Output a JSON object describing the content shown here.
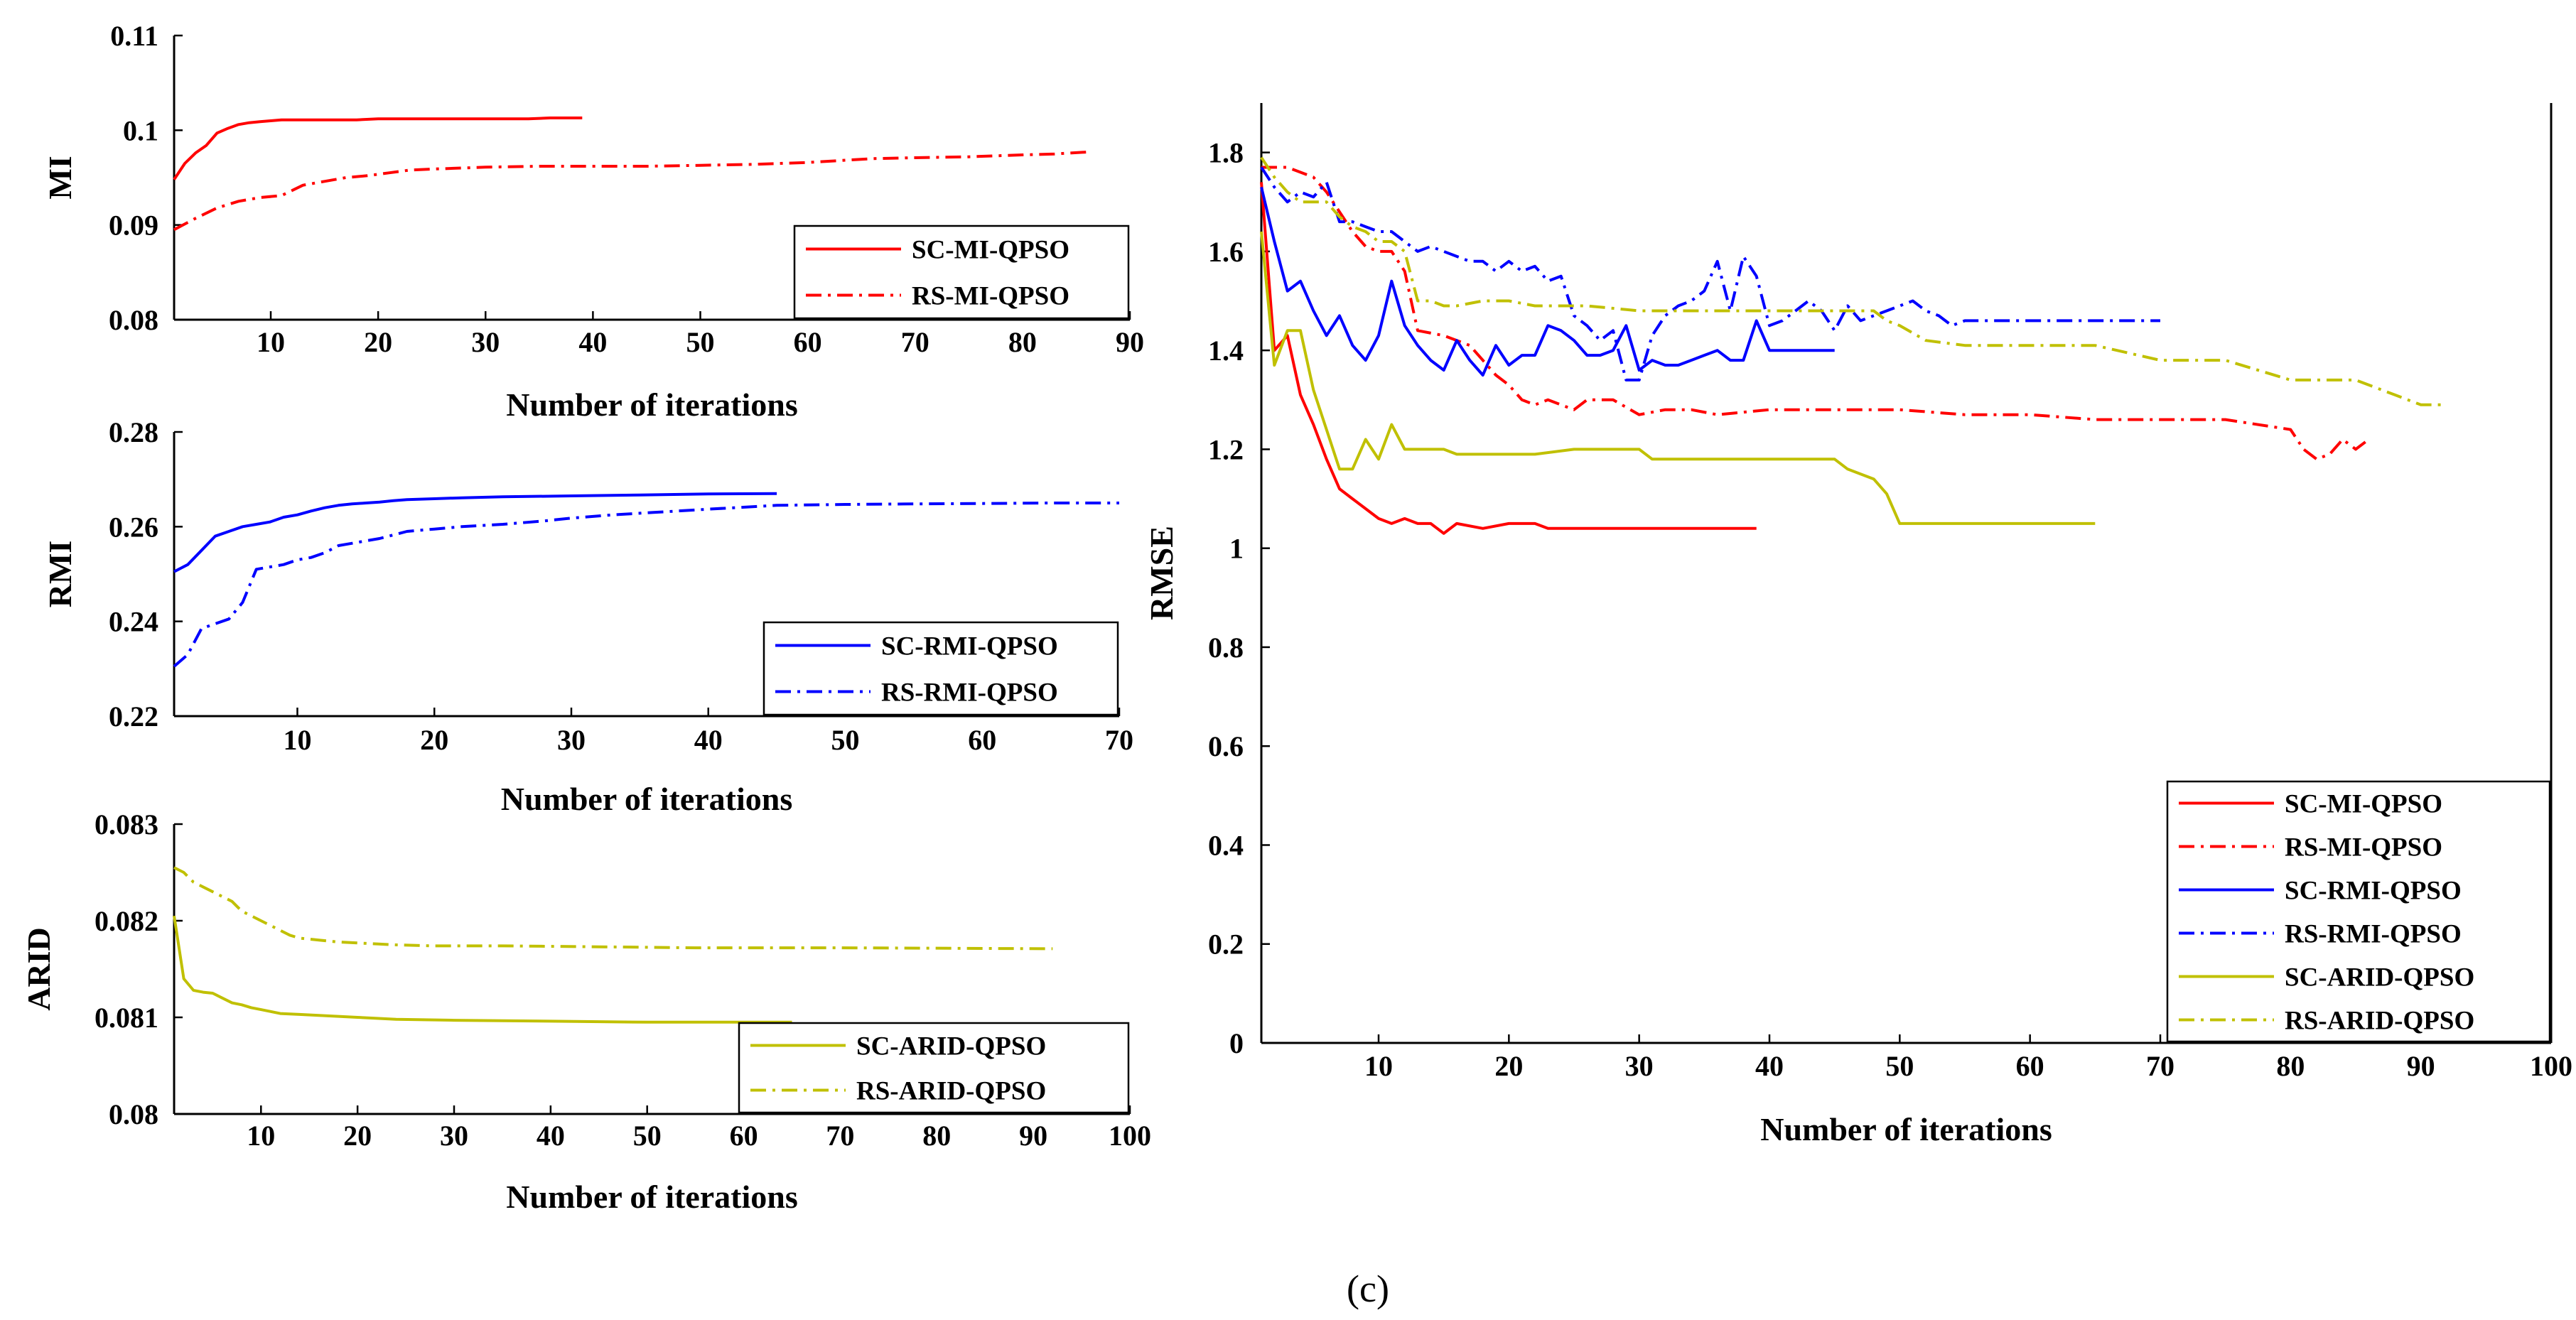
{
  "caption": "(c)",
  "chart_data": [
    {
      "id": "mi",
      "type": "line",
      "xlabel": "Number of iterations",
      "ylabel": "MI",
      "xlim": [
        1,
        90
      ],
      "ylim": [
        0.08,
        0.11
      ],
      "xticks": [
        10,
        20,
        30,
        40,
        50,
        60,
        70,
        80,
        90
      ],
      "xtick_labels": [
        "10",
        "20",
        "30",
        "40",
        "50",
        "60",
        "70",
        "80",
        "90"
      ],
      "yticks": [
        0.08,
        0.09,
        0.1,
        0.11
      ],
      "ytick_labels": [
        "0.08",
        "0.09",
        "0.1",
        "0.11"
      ],
      "legend": "bottom-right",
      "series": [
        {
          "name": "SC-MI-QPSO",
          "color": "#ff0000",
          "style": "solid",
          "x": [
            1,
            2,
            3,
            4,
            5,
            6,
            7,
            8,
            9,
            10,
            11,
            12,
            14,
            16,
            18,
            20,
            22,
            24,
            26,
            28,
            30,
            32,
            34,
            36,
            38,
            39
          ],
          "y": [
            0.0948,
            0.0965,
            0.0976,
            0.0984,
            0.0997,
            0.1002,
            0.1006,
            0.1008,
            0.1009,
            0.101,
            0.1011,
            0.1011,
            0.1011,
            0.1011,
            0.1011,
            0.1012,
            0.1012,
            0.1012,
            0.1012,
            0.1012,
            0.1012,
            0.1012,
            0.1012,
            0.1013,
            0.1013,
            0.1013
          ]
        },
        {
          "name": "RS-MI-QPSO",
          "color": "#ff0000",
          "style": "dashdot",
          "x": [
            1,
            3,
            5,
            7,
            9,
            11,
            13,
            15,
            17,
            19,
            21,
            23,
            25,
            30,
            35,
            40,
            45,
            50,
            55,
            60,
            63,
            66,
            70,
            75,
            80,
            83,
            86
          ],
          "y": [
            0.0895,
            0.0907,
            0.0918,
            0.0925,
            0.0929,
            0.0931,
            0.0942,
            0.0946,
            0.095,
            0.0952,
            0.0955,
            0.0958,
            0.0959,
            0.0961,
            0.0962,
            0.0962,
            0.0962,
            0.0963,
            0.0964,
            0.0966,
            0.0968,
            0.097,
            0.0971,
            0.0972,
            0.0974,
            0.0975,
            0.0977
          ]
        }
      ]
    },
    {
      "id": "rmi",
      "type": "line",
      "xlabel": "Number of iterations",
      "ylabel": "RMI",
      "xlim": [
        1,
        70
      ],
      "ylim": [
        0.22,
        0.28
      ],
      "xticks": [
        10,
        20,
        30,
        40,
        50,
        60,
        70
      ],
      "xtick_labels": [
        "10",
        "20",
        "30",
        "40",
        "50",
        "60",
        "70"
      ],
      "yticks": [
        0.22,
        0.24,
        0.26,
        0.28
      ],
      "ytick_labels": [
        "0.22",
        "0.24",
        "0.26",
        "0.28"
      ],
      "legend": "bottom-right",
      "series": [
        {
          "name": "SC-RMI-QPSO",
          "color": "#0000ff",
          "style": "solid",
          "x": [
            1,
            2,
            3,
            4,
            5,
            6,
            7,
            8,
            9,
            10,
            11,
            12,
            13,
            14,
            15,
            16,
            17,
            18,
            20,
            22,
            25,
            30,
            35,
            40,
            45
          ],
          "y": [
            0.2505,
            0.252,
            0.255,
            0.258,
            0.259,
            0.26,
            0.2605,
            0.261,
            0.262,
            0.2625,
            0.2633,
            0.264,
            0.2645,
            0.2648,
            0.265,
            0.2652,
            0.2655,
            0.2657,
            0.2659,
            0.2661,
            0.2663,
            0.2665,
            0.2667,
            0.2669,
            0.267
          ]
        },
        {
          "name": "RS-RMI-QPSO",
          "color": "#0000ff",
          "style": "dashdot",
          "x": [
            1,
            2,
            3,
            4,
            5,
            6,
            7,
            8,
            9,
            10,
            11,
            12,
            13,
            14,
            15,
            16,
            18,
            20,
            22,
            25,
            28,
            30,
            33,
            36,
            40,
            45,
            50,
            55,
            60,
            65,
            70
          ],
          "y": [
            0.2305,
            0.233,
            0.2385,
            0.2395,
            0.2405,
            0.244,
            0.251,
            0.2515,
            0.252,
            0.253,
            0.2535,
            0.2545,
            0.256,
            0.2565,
            0.257,
            0.2575,
            0.259,
            0.2595,
            0.26,
            0.2605,
            0.2612,
            0.2618,
            0.2625,
            0.263,
            0.2637,
            0.2645,
            0.2647,
            0.2648,
            0.2649,
            0.265,
            0.265
          ]
        }
      ]
    },
    {
      "id": "arid",
      "type": "line",
      "xlabel": "Number of iterations",
      "ylabel": "ARID",
      "xlim": [
        1,
        100
      ],
      "ylim": [
        0.08,
        0.083
      ],
      "xticks": [
        10,
        20,
        30,
        40,
        50,
        60,
        70,
        80,
        90,
        100
      ],
      "xtick_labels": [
        "10",
        "20",
        "30",
        "40",
        "50",
        "60",
        "70",
        "80",
        "90",
        "100"
      ],
      "yticks": [
        0.08,
        0.081,
        0.082,
        0.083
      ],
      "ytick_labels": [
        "0.08",
        "0.081",
        "0.082",
        "0.083"
      ],
      "legend": "bottom-right",
      "series": [
        {
          "name": "SC-ARID-QPSO",
          "color": "#c0c000",
          "style": "solid",
          "x": [
            1,
            2,
            3,
            4,
            5,
            6,
            7,
            8,
            9,
            10,
            11,
            12,
            14,
            16,
            18,
            20,
            24,
            30,
            40,
            50,
            65
          ],
          "y": [
            0.08205,
            0.0814,
            0.08128,
            0.08126,
            0.08125,
            0.0812,
            0.08115,
            0.08113,
            0.0811,
            0.08108,
            0.08106,
            0.08104,
            0.08103,
            0.08102,
            0.08101,
            0.081,
            0.08098,
            0.08097,
            0.08096,
            0.08095,
            0.08095
          ]
        },
        {
          "name": "RS-ARID-QPSO",
          "color": "#c0c000",
          "style": "dashdot",
          "x": [
            1,
            2,
            3,
            4,
            5,
            6,
            7,
            8,
            9,
            10,
            11,
            12,
            13,
            14,
            16,
            18,
            20,
            22,
            24,
            28,
            35,
            45,
            55,
            70,
            92
          ],
          "y": [
            0.08255,
            0.0825,
            0.0824,
            0.08235,
            0.0823,
            0.08225,
            0.0822,
            0.0821,
            0.08205,
            0.082,
            0.08195,
            0.0819,
            0.08185,
            0.08182,
            0.0818,
            0.08178,
            0.08177,
            0.08176,
            0.08175,
            0.08174,
            0.08174,
            0.08173,
            0.08172,
            0.08172,
            0.08171
          ]
        }
      ]
    },
    {
      "id": "rmse",
      "type": "line",
      "xlabel": "Number of iterations",
      "ylabel": "RMSE",
      "xlim": [
        1,
        100
      ],
      "ylim": [
        0,
        1.9
      ],
      "xticks": [
        10,
        20,
        30,
        40,
        50,
        60,
        70,
        80,
        90,
        100
      ],
      "xtick_labels": [
        "10",
        "20",
        "30",
        "40",
        "50",
        "60",
        "70",
        "80",
        "90",
        "100"
      ],
      "yticks": [
        0,
        0.2,
        0.4,
        0.6,
        0.8,
        1,
        1.2,
        1.4,
        1.6,
        1.8
      ],
      "ytick_labels": [
        "0",
        "0.2",
        "0.4",
        "0.6",
        "0.8",
        "1",
        "1.2",
        "1.4",
        "1.6",
        "1.8"
      ],
      "legend": "bottom-right",
      "series": [
        {
          "name": "SC-MI-QPSO",
          "color": "#ff0000",
          "style": "solid",
          "x": [
            1,
            2,
            3,
            4,
            5,
            6,
            7,
            8,
            9,
            10,
            11,
            12,
            13,
            14,
            15,
            16,
            18,
            20,
            22,
            23,
            25,
            27,
            29,
            31,
            33,
            35,
            37,
            39
          ],
          "y": [
            1.74,
            1.4,
            1.43,
            1.31,
            1.25,
            1.18,
            1.12,
            1.1,
            1.08,
            1.06,
            1.05,
            1.06,
            1.05,
            1.05,
            1.03,
            1.05,
            1.04,
            1.05,
            1.05,
            1.04,
            1.04,
            1.04,
            1.04,
            1.04,
            1.04,
            1.04,
            1.04,
            1.04
          ]
        },
        {
          "name": "RS-MI-QPSO",
          "color": "#ff0000",
          "style": "dashdot",
          "x": [
            1,
            3,
            5,
            6,
            7,
            8,
            9,
            10,
            11,
            12,
            13,
            15,
            17,
            18,
            19,
            20,
            21,
            22,
            23,
            24,
            25,
            26,
            28,
            30,
            32,
            34,
            36,
            40,
            45,
            50,
            55,
            60,
            65,
            70,
            75,
            80,
            81,
            82,
            83,
            84,
            85,
            86
          ],
          "y": [
            1.77,
            1.77,
            1.75,
            1.72,
            1.68,
            1.64,
            1.61,
            1.6,
            1.6,
            1.56,
            1.44,
            1.43,
            1.41,
            1.38,
            1.35,
            1.33,
            1.3,
            1.29,
            1.3,
            1.29,
            1.28,
            1.3,
            1.3,
            1.27,
            1.28,
            1.28,
            1.27,
            1.28,
            1.28,
            1.28,
            1.27,
            1.27,
            1.26,
            1.26,
            1.26,
            1.24,
            1.2,
            1.18,
            1.19,
            1.22,
            1.2,
            1.22
          ]
        },
        {
          "name": "SC-RMI-QPSO",
          "color": "#0000ff",
          "style": "solid",
          "x": [
            1,
            2,
            3,
            4,
            5,
            6,
            7,
            8,
            9,
            10,
            11,
            12,
            13,
            14,
            15,
            16,
            17,
            18,
            19,
            20,
            21,
            22,
            23,
            24,
            25,
            26,
            27,
            28,
            29,
            30,
            31,
            32,
            33,
            34,
            35,
            36,
            37,
            38,
            39,
            40,
            42,
            45
          ],
          "y": [
            1.73,
            1.62,
            1.52,
            1.54,
            1.48,
            1.43,
            1.47,
            1.41,
            1.38,
            1.43,
            1.54,
            1.45,
            1.41,
            1.38,
            1.36,
            1.42,
            1.38,
            1.35,
            1.41,
            1.37,
            1.39,
            1.39,
            1.45,
            1.44,
            1.42,
            1.39,
            1.39,
            1.4,
            1.45,
            1.36,
            1.38,
            1.37,
            1.37,
            1.38,
            1.39,
            1.4,
            1.38,
            1.38,
            1.46,
            1.4,
            1.4,
            1.4
          ]
        },
        {
          "name": "RS-RMI-QPSO",
          "color": "#0000ff",
          "style": "dashdot",
          "x": [
            1,
            2,
            3,
            4,
            5,
            6,
            7,
            8,
            9,
            10,
            11,
            12,
            13,
            14,
            15,
            16,
            17,
            18,
            19,
            20,
            21,
            22,
            23,
            24,
            25,
            26,
            27,
            28,
            29,
            30,
            31,
            32,
            33,
            34,
            35,
            36,
            37,
            38,
            39,
            40,
            41,
            42,
            43,
            44,
            45,
            46,
            47,
            48,
            49,
            50,
            51,
            52,
            53,
            54,
            55,
            60,
            65,
            70
          ],
          "y": [
            1.77,
            1.73,
            1.7,
            1.72,
            1.71,
            1.74,
            1.66,
            1.66,
            1.65,
            1.64,
            1.64,
            1.62,
            1.6,
            1.61,
            1.6,
            1.59,
            1.58,
            1.58,
            1.56,
            1.58,
            1.56,
            1.57,
            1.54,
            1.55,
            1.47,
            1.45,
            1.42,
            1.44,
            1.34,
            1.34,
            1.43,
            1.47,
            1.49,
            1.5,
            1.52,
            1.58,
            1.48,
            1.59,
            1.55,
            1.45,
            1.46,
            1.48,
            1.5,
            1.48,
            1.44,
            1.49,
            1.46,
            1.47,
            1.48,
            1.49,
            1.5,
            1.48,
            1.47,
            1.45,
            1.46,
            1.46,
            1.46,
            1.46
          ]
        },
        {
          "name": "SC-ARID-QPSO",
          "color": "#c0c000",
          "style": "solid",
          "x": [
            1,
            2,
            3,
            4,
            5,
            6,
            7,
            8,
            9,
            10,
            11,
            12,
            13,
            14,
            15,
            16,
            17,
            18,
            20,
            22,
            25,
            30,
            31,
            35,
            40,
            45,
            46,
            47,
            48,
            49,
            50,
            55,
            60,
            65
          ],
          "y": [
            1.64,
            1.37,
            1.44,
            1.44,
            1.32,
            1.24,
            1.16,
            1.16,
            1.22,
            1.18,
            1.25,
            1.2,
            1.2,
            1.2,
            1.2,
            1.19,
            1.19,
            1.19,
            1.19,
            1.19,
            1.2,
            1.2,
            1.18,
            1.18,
            1.18,
            1.18,
            1.16,
            1.15,
            1.14,
            1.11,
            1.05,
            1.05,
            1.05,
            1.05
          ]
        },
        {
          "name": "RS-ARID-QPSO",
          "color": "#c0c000",
          "style": "dashdot",
          "x": [
            1,
            2,
            3,
            4,
            5,
            6,
            7,
            8,
            9,
            10,
            11,
            12,
            13,
            14,
            15,
            16,
            18,
            20,
            22,
            24,
            26,
            30,
            35,
            40,
            45,
            47,
            48,
            49,
            50,
            52,
            55,
            60,
            65,
            70,
            75,
            80,
            85,
            88,
            90,
            92
          ],
          "y": [
            1.79,
            1.75,
            1.72,
            1.7,
            1.7,
            1.7,
            1.67,
            1.65,
            1.64,
            1.62,
            1.62,
            1.6,
            1.5,
            1.5,
            1.49,
            1.49,
            1.5,
            1.5,
            1.49,
            1.49,
            1.49,
            1.48,
            1.48,
            1.48,
            1.48,
            1.48,
            1.48,
            1.46,
            1.45,
            1.42,
            1.41,
            1.41,
            1.41,
            1.38,
            1.38,
            1.34,
            1.34,
            1.31,
            1.29,
            1.29
          ]
        }
      ]
    }
  ]
}
